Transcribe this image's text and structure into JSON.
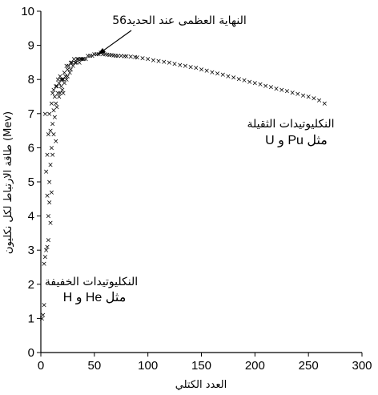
{
  "chart_data": {
    "type": "scatter",
    "xlabel": "العدد الكتلي",
    "ylabel": "طاقة الارتباط لكل نكليون (Mev)",
    "xlim": [
      0,
      300
    ],
    "ylim": [
      0,
      10
    ],
    "x_ticks": [
      "0",
      "50",
      "100",
      "150",
      "200",
      "250",
      "300"
    ],
    "y_ticks": [
      "0",
      "1",
      "2",
      "3",
      "4",
      "5",
      "6",
      "7",
      "8",
      "9",
      "10"
    ],
    "grid": false,
    "marker": "×",
    "marker_color": "#000000",
    "annotations": {
      "peak_label": "النهاية العظمى عند الحديد56",
      "heavy_line1": "النكليوتيدات الثقيلة",
      "heavy_line2": "مثل  Pu و U",
      "light_line1": "النكليوتيدات الخفيفة",
      "light_line2": "مثل He و H"
    },
    "series": [
      {
        "x": [
          1,
          2,
          3,
          3,
          4,
          4,
          5,
          5,
          6,
          6,
          6,
          7,
          7,
          7,
          8,
          8,
          8,
          9,
          9,
          9,
          10,
          10,
          10,
          11,
          11,
          11,
          12,
          12,
          12,
          13,
          13,
          14,
          14,
          14,
          15,
          15,
          16,
          16,
          17,
          17,
          18,
          18,
          19,
          19,
          20,
          20,
          21,
          21,
          22,
          22,
          23,
          24,
          24,
          25,
          25,
          26,
          27,
          28,
          28,
          29,
          30,
          31,
          32,
          33,
          34,
          35,
          36,
          37,
          38,
          39,
          40,
          42,
          44,
          46,
          48,
          50,
          52,
          54,
          56,
          58,
          60,
          62,
          64,
          66,
          68,
          70,
          72,
          75,
          78,
          80,
          84,
          88,
          90,
          95,
          100,
          105,
          110,
          115,
          120,
          125,
          130,
          135,
          140,
          145,
          150,
          155,
          160,
          165,
          170,
          175,
          180,
          185,
          190,
          195,
          200,
          205,
          210,
          215,
          220,
          225,
          230,
          235,
          240,
          245,
          250,
          255,
          260,
          265
        ],
        "y": [
          1.0,
          1.1,
          1.4,
          2.6,
          2.8,
          7.0,
          3.0,
          5.3,
          3.1,
          4.6,
          5.8,
          3.3,
          4.0,
          6.4,
          4.4,
          5.0,
          7.0,
          3.8,
          5.5,
          6.5,
          4.7,
          6.0,
          7.3,
          5.8,
          6.7,
          7.6,
          6.4,
          7.1,
          7.7,
          6.9,
          7.5,
          7.3,
          7.8,
          6.2,
          7.2,
          7.8,
          7.6,
          8.0,
          7.5,
          7.9,
          7.6,
          8.1,
          7.8,
          8.0,
          7.7,
          8.0,
          8.0,
          7.6,
          8.2,
          7.9,
          8.1,
          8.4,
          8.0,
          8.3,
          8.1,
          8.4,
          8.2,
          8.5,
          8.3,
          8.5,
          8.4,
          8.6,
          8.5,
          8.5,
          8.6,
          8.6,
          8.5,
          8.6,
          8.6,
          8.6,
          8.6,
          8.6,
          8.7,
          8.7,
          8.7,
          8.75,
          8.75,
          8.75,
          8.79,
          8.75,
          8.74,
          8.73,
          8.72,
          8.72,
          8.71,
          8.7,
          8.7,
          8.7,
          8.69,
          8.68,
          8.67,
          8.66,
          8.65,
          8.63,
          8.6,
          8.57,
          8.55,
          8.52,
          8.5,
          8.46,
          8.43,
          8.4,
          8.37,
          8.34,
          8.3,
          8.26,
          8.22,
          8.18,
          8.14,
          8.1,
          8.06,
          8.02,
          7.98,
          7.94,
          7.9,
          7.86,
          7.82,
          7.78,
          7.74,
          7.7,
          7.66,
          7.62,
          7.58,
          7.54,
          7.5,
          7.45,
          7.4,
          7.3
        ]
      }
    ]
  }
}
